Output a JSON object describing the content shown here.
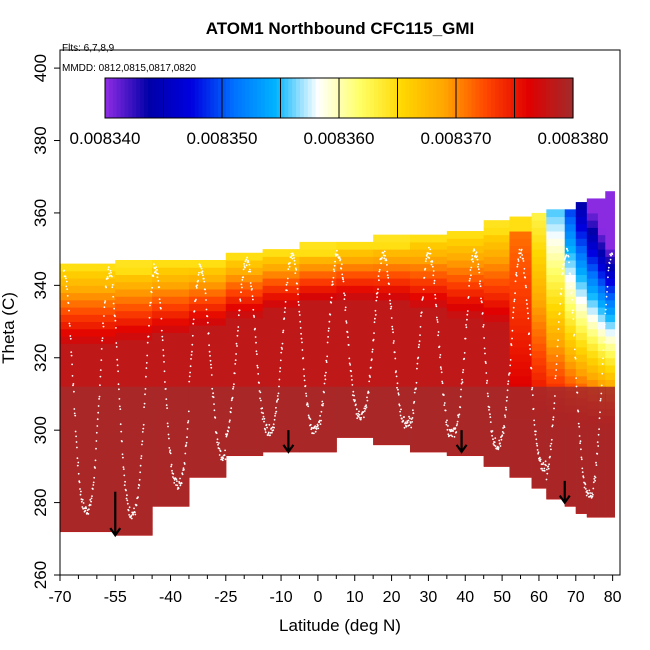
{
  "chart_data": {
    "type": "heatmap",
    "title": "ATOM1 Northbound CFC115_GMI",
    "subtitle_flights": "Flts: 6,7,8,9",
    "subtitle_dates": "MMDD: 0812,0815,0817,0820",
    "xlabel": "Latitude (deg N)",
    "ylabel": "Theta (C)",
    "xlim": [
      -70,
      82
    ],
    "ylim": [
      260,
      405
    ],
    "x_ticks": [
      -70,
      -55,
      -40,
      -25,
      -10,
      0,
      10,
      20,
      30,
      40,
      50,
      60,
      70,
      80
    ],
    "x_ticks_minor": [
      -65,
      -60,
      -50,
      -45,
      -35,
      -30,
      -20,
      -15,
      -5,
      5,
      15,
      25,
      35,
      45,
      55,
      65,
      75
    ],
    "y_ticks": [
      260,
      280,
      300,
      320,
      340,
      360,
      380,
      400
    ],
    "colorbar": {
      "min": 0.00834,
      "max": 0.00838,
      "tick_labels": [
        "0.008340",
        "0.008350",
        "0.008360",
        "0.008370",
        "0.008380"
      ],
      "colors": [
        "#8a2be2",
        "#0000a8",
        "#0000e0",
        "#0070ff",
        "#00b4ff",
        "#ffffff",
        "#ffff66",
        "#ffd700",
        "#ffa500",
        "#ff4500",
        "#e00000",
        "#a52a2a"
      ]
    },
    "field": {
      "x_edges": [
        -70,
        -55,
        -45,
        -35,
        -25,
        -15,
        -5,
        5,
        15,
        25,
        35,
        45,
        52,
        58,
        62,
        67,
        70,
        73,
        76,
        78,
        80.5
      ],
      "bottom_theta": [
        272,
        271,
        279,
        287,
        293,
        294,
        294,
        298,
        296,
        294,
        293,
        290,
        287,
        284,
        281,
        279,
        277,
        276,
        276,
        276
      ],
      "top_theta": [
        346,
        346,
        347,
        347,
        349,
        350,
        351,
        352,
        353,
        354,
        355,
        357,
        358,
        359,
        360,
        361,
        362,
        363,
        364,
        365
      ]
    },
    "flight_tracks": [
      {
        "name": "descent-arrow-1",
        "lat": -55,
        "theta_top": 283,
        "theta_bottom": 271
      },
      {
        "name": "descent-arrow-2",
        "lat": -8,
        "theta_top": 300,
        "theta_bottom": 294
      },
      {
        "name": "descent-arrow-3",
        "lat": 39,
        "theta_top": 300,
        "theta_bottom": 294
      },
      {
        "name": "descent-arrow-4",
        "lat": 67,
        "theta_top": 286,
        "theta_bottom": 280
      }
    ]
  },
  "colors": {
    "axis": "#000000",
    "track": "#ffffff"
  }
}
